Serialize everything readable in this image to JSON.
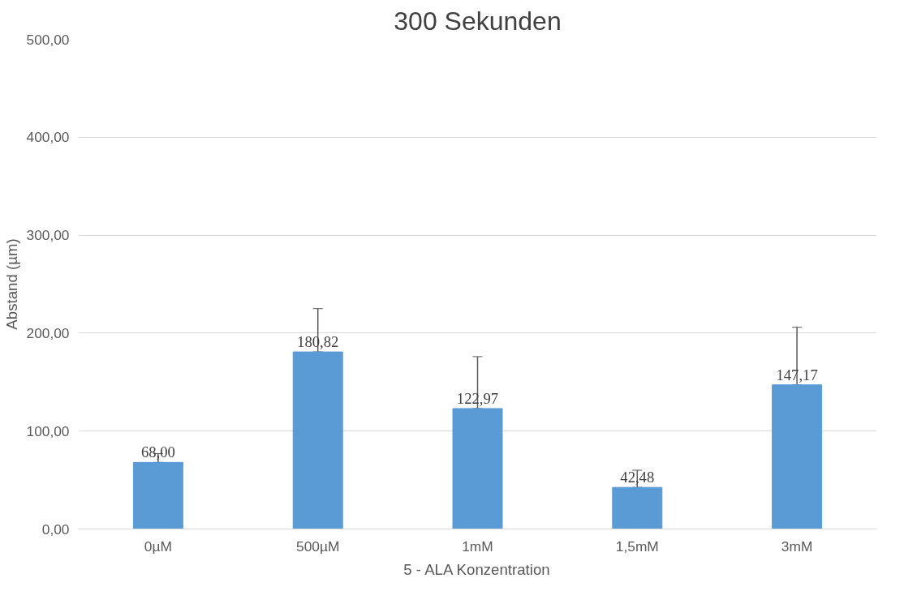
{
  "chart_data": {
    "type": "bar",
    "title": "300 Sekunden",
    "xlabel": "5 - ALA Konzentration",
    "ylabel": "Abstand (µm)",
    "categories": [
      "0µM",
      "500µM",
      "1mM",
      "1,5mM",
      "3mM"
    ],
    "values": [
      68.0,
      180.82,
      122.97,
      42.48,
      147.17
    ],
    "value_labels": [
      "68,00",
      "180,82",
      "122,97",
      "42,48",
      "147,17"
    ],
    "errors": [
      [
        68.0,
        77
      ],
      [
        180.82,
        225
      ],
      [
        122.97,
        176
      ],
      [
        42.48,
        60
      ],
      [
        147.17,
        206
      ]
    ],
    "color": "#5b9bd5",
    "ylim": [
      0,
      500
    ],
    "yticks": [
      {
        "value": 0,
        "label": "0,00"
      },
      {
        "value": 100,
        "label": "100,00"
      },
      {
        "value": 200,
        "label": "200,00"
      },
      {
        "value": 300,
        "label": "300,00"
      },
      {
        "value": 400,
        "label": "400,00"
      },
      {
        "value": 500,
        "label": "500,00"
      }
    ],
    "grid": "y"
  }
}
